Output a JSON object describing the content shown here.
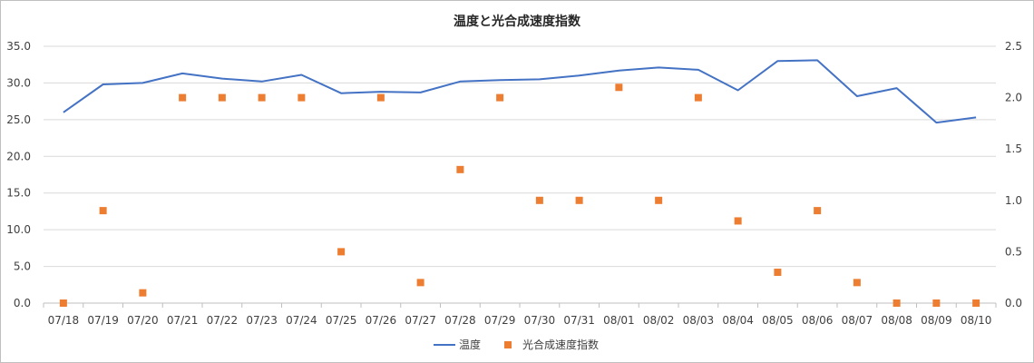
{
  "chart_data": {
    "type": "line",
    "title": "温度と光合成速度指数",
    "categories": [
      "07/18",
      "07/19",
      "07/20",
      "07/21",
      "07/22",
      "07/23",
      "07/24",
      "07/25",
      "07/26",
      "07/27",
      "07/28",
      "07/29",
      "07/30",
      "07/31",
      "08/01",
      "08/02",
      "08/03",
      "08/04",
      "08/05",
      "08/06",
      "08/07",
      "08/08",
      "08/09",
      "08/10"
    ],
    "y_left": {
      "min": 0,
      "max": 35,
      "step": 5,
      "ticks": [
        "0.0",
        "5.0",
        "10.0",
        "15.0",
        "20.0",
        "25.0",
        "30.0",
        "35.0"
      ]
    },
    "y_right": {
      "min": 0,
      "max": 2.5,
      "step": 0.5,
      "ticks": [
        "0.0",
        "0.5",
        "1.0",
        "1.5",
        "2.0",
        "2.5"
      ]
    },
    "grid": true,
    "legend_position": "bottom",
    "series": [
      {
        "name": "温度",
        "type": "line",
        "axis": "left",
        "color": "#4472C4",
        "values": [
          26.0,
          29.8,
          30.0,
          31.3,
          30.6,
          30.2,
          31.1,
          28.6,
          28.8,
          28.7,
          30.2,
          30.4,
          30.5,
          31.0,
          31.7,
          32.1,
          31.8,
          29.0,
          33.0,
          33.1,
          28.2,
          29.3,
          24.6,
          25.3
        ]
      },
      {
        "name": "光合成速度指数",
        "type": "scatter",
        "axis": "right",
        "color": "#ED7D31",
        "values": [
          0.0,
          0.9,
          0.1,
          2.0,
          2.0,
          2.0,
          2.0,
          0.5,
          2.0,
          0.2,
          1.3,
          2.0,
          1.0,
          1.0,
          2.1,
          1.0,
          2.0,
          0.8,
          0.3,
          0.9,
          0.2,
          0.0,
          0.0,
          0.0
        ]
      }
    ]
  }
}
